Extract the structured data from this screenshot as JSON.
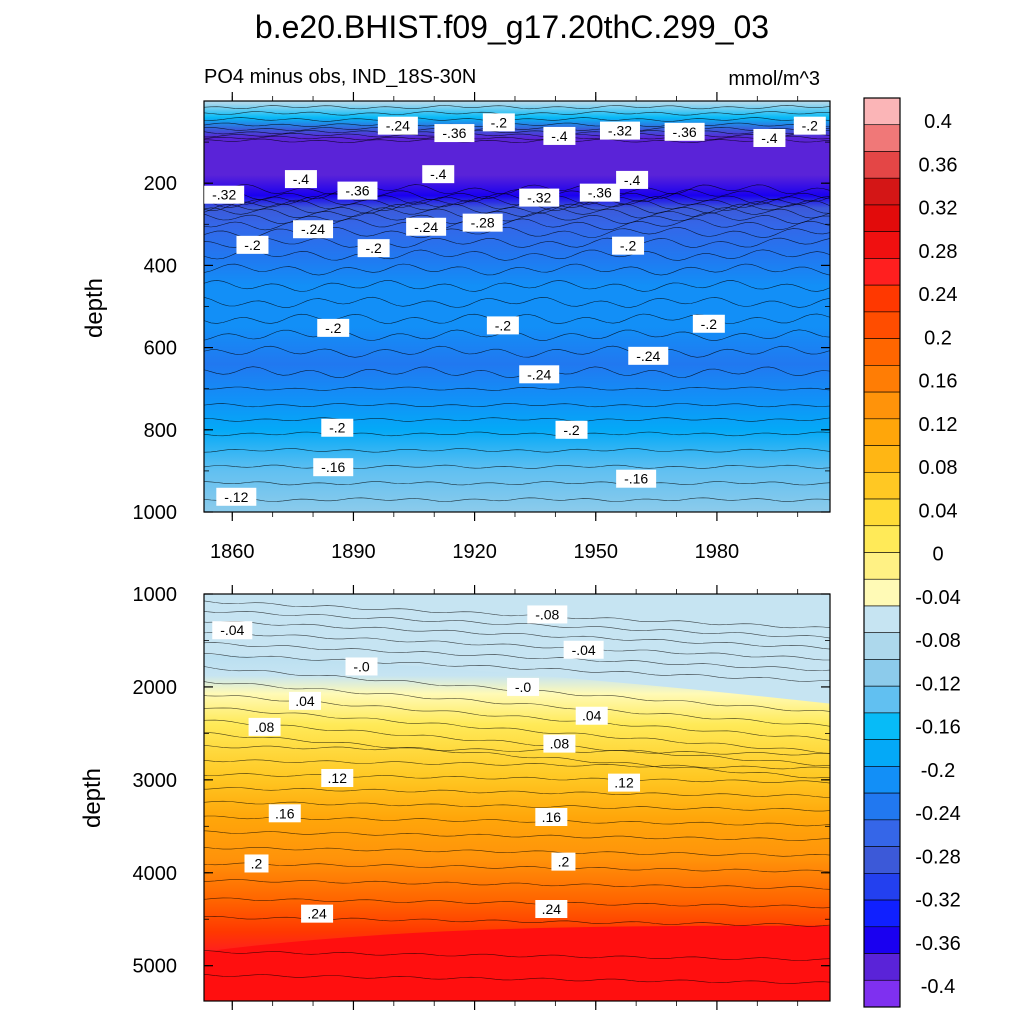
{
  "title": "b.e20.BHIST.f09_g17.20thC.299_03",
  "subtitle_left": "PO4 minus obs, IND_18S-30N",
  "subtitle_right": "mmol/m^3",
  "chart_data": [
    {
      "type": "heatmap",
      "panel": "upper",
      "ylabel": "depth",
      "x_ticks": [
        "1860",
        "1890",
        "1920",
        "1950",
        "1980"
      ],
      "x_tick_values": [
        1860,
        1890,
        1920,
        1950,
        1980
      ],
      "xlim": [
        1853,
        2008
      ],
      "y_ticks": [
        "200",
        "400",
        "600",
        "800",
        "1000"
      ],
      "y_tick_values": [
        200,
        400,
        600,
        800,
        1000
      ],
      "ylim": [
        0,
        1000
      ],
      "depth_profile": [
        {
          "depth": 5,
          "value": -0.08
        },
        {
          "depth": 40,
          "value": -0.16
        },
        {
          "depth": 70,
          "value": -0.28
        },
        {
          "depth": 90,
          "value": -0.4
        },
        {
          "depth": 180,
          "value": -0.4
        },
        {
          "depth": 230,
          "value": -0.36
        },
        {
          "depth": 260,
          "value": -0.3
        },
        {
          "depth": 300,
          "value": -0.26
        },
        {
          "depth": 380,
          "value": -0.23
        },
        {
          "depth": 450,
          "value": -0.22
        },
        {
          "depth": 550,
          "value": -0.21
        },
        {
          "depth": 640,
          "value": -0.25
        },
        {
          "depth": 720,
          "value": -0.22
        },
        {
          "depth": 800,
          "value": -0.19
        },
        {
          "depth": 900,
          "value": -0.15
        },
        {
          "depth": 1000,
          "value": -0.12
        }
      ],
      "contour_labels": [
        {
          "text": "-.24",
          "x": 1901,
          "y": 60
        },
        {
          "text": "-.2",
          "x": 1926,
          "y": 52
        },
        {
          "text": "-.36",
          "x": 1915,
          "y": 78
        },
        {
          "text": "-.4",
          "x": 1941,
          "y": 85
        },
        {
          "text": "-.32",
          "x": 1956,
          "y": 72
        },
        {
          "text": "-.36",
          "x": 1972,
          "y": 75
        },
        {
          "text": "-.4",
          "x": 1993,
          "y": 90
        },
        {
          "text": "-.2",
          "x": 2003,
          "y": 60
        },
        {
          "text": "-.4",
          "x": 1877,
          "y": 190
        },
        {
          "text": "-.4",
          "x": 1911,
          "y": 178
        },
        {
          "text": "-.4",
          "x": 1959,
          "y": 192
        },
        {
          "text": "-.32",
          "x": 1858,
          "y": 228
        },
        {
          "text": "-.36",
          "x": 1891,
          "y": 218
        },
        {
          "text": "-.32",
          "x": 1936,
          "y": 235
        },
        {
          "text": "-.36",
          "x": 1951,
          "y": 223
        },
        {
          "text": "-.24",
          "x": 1880,
          "y": 312
        },
        {
          "text": "-.24",
          "x": 1908,
          "y": 306
        },
        {
          "text": "-.28",
          "x": 1922,
          "y": 296
        },
        {
          "text": "-.2",
          "x": 1865,
          "y": 350
        },
        {
          "text": "-.2",
          "x": 1895,
          "y": 358
        },
        {
          "text": "-.2",
          "x": 1958,
          "y": 352
        },
        {
          "text": "-.2",
          "x": 1885,
          "y": 552
        },
        {
          "text": "-.2",
          "x": 1927,
          "y": 546
        },
        {
          "text": "-.2",
          "x": 1978,
          "y": 542
        },
        {
          "text": "-.24",
          "x": 1963,
          "y": 620
        },
        {
          "text": "-.24",
          "x": 1936,
          "y": 665
        },
        {
          "text": "-.2",
          "x": 1886,
          "y": 795
        },
        {
          "text": "-.2",
          "x": 1944,
          "y": 800
        },
        {
          "text": "-.16",
          "x": 1885,
          "y": 891
        },
        {
          "text": "-.16",
          "x": 1960,
          "y": 919
        },
        {
          "text": "-.12",
          "x": 1861,
          "y": 963
        }
      ]
    },
    {
      "type": "heatmap",
      "panel": "lower",
      "ylabel": "depth",
      "y_ticks": [
        "1000",
        "2000",
        "3000",
        "4000",
        "5000"
      ],
      "y_tick_values": [
        1000,
        2000,
        3000,
        4000,
        5000
      ],
      "ylim": [
        1000,
        5380
      ],
      "xlim": [
        1853,
        2008
      ],
      "zero_contour_depth_start": 1650,
      "zero_contour_depth_end": 2180,
      "contour_labels": [
        {
          "text": "-.08",
          "x": 1938,
          "y": 1220
        },
        {
          "text": "-.04",
          "x": 1860,
          "y": 1390
        },
        {
          "text": "-.04",
          "x": 1947,
          "y": 1600
        },
        {
          "text": "-.0",
          "x": 1892,
          "y": 1780
        },
        {
          "text": "-.0",
          "x": 1932,
          "y": 2000
        },
        {
          "text": ".04",
          "x": 1878,
          "y": 2150
        },
        {
          "text": ".04",
          "x": 1949,
          "y": 2310
        },
        {
          "text": ".08",
          "x": 1868,
          "y": 2430
        },
        {
          "text": ".08",
          "x": 1941,
          "y": 2610
        },
        {
          "text": ".12",
          "x": 1886,
          "y": 2980
        },
        {
          "text": ".12",
          "x": 1957,
          "y": 3030
        },
        {
          "text": ".16",
          "x": 1873,
          "y": 3360
        },
        {
          "text": ".16",
          "x": 1939,
          "y": 3400
        },
        {
          "text": ".2",
          "x": 1866,
          "y": 3900
        },
        {
          "text": ".2",
          "x": 1942,
          "y": 3880
        },
        {
          "text": ".24",
          "x": 1881,
          "y": 4440
        },
        {
          "text": ".24",
          "x": 1939,
          "y": 4390
        }
      ]
    }
  ],
  "colorbar": {
    "labels": [
      "0.4",
      "0.36",
      "0.32",
      "0.28",
      "0.24",
      "0.2",
      "0.16",
      "0.12",
      "0.08",
      "0.04",
      "0",
      "-0.04",
      "-0.08",
      "-0.12",
      "-0.16",
      "-0.2",
      "-0.24",
      "-0.28",
      "-0.32",
      "-0.36",
      "-0.4"
    ],
    "colors": [
      "#fbb5b7",
      "#f07878",
      "#e44646",
      "#d41616",
      "#e20b0b",
      "#f01010",
      "#ff1f1f",
      "#ff3800",
      "#ff4d00",
      "#ff6600",
      "#ff7d05",
      "#ff930a",
      "#ffa60a",
      "#ffb614",
      "#ffc823",
      "#ffdb36",
      "#ffea58",
      "#fff184",
      "#fffab6",
      "#c6e4f2",
      "#add8ec",
      "#8ccbeb",
      "#61c0f1",
      "#07bbf7",
      "#04a9f7",
      "#128ff7",
      "#2178f0",
      "#3566e8",
      "#3c59d8",
      "#2340ef",
      "#1020ff",
      "#1a00f0",
      "#5a23d8",
      "#7f30f0"
    ]
  }
}
